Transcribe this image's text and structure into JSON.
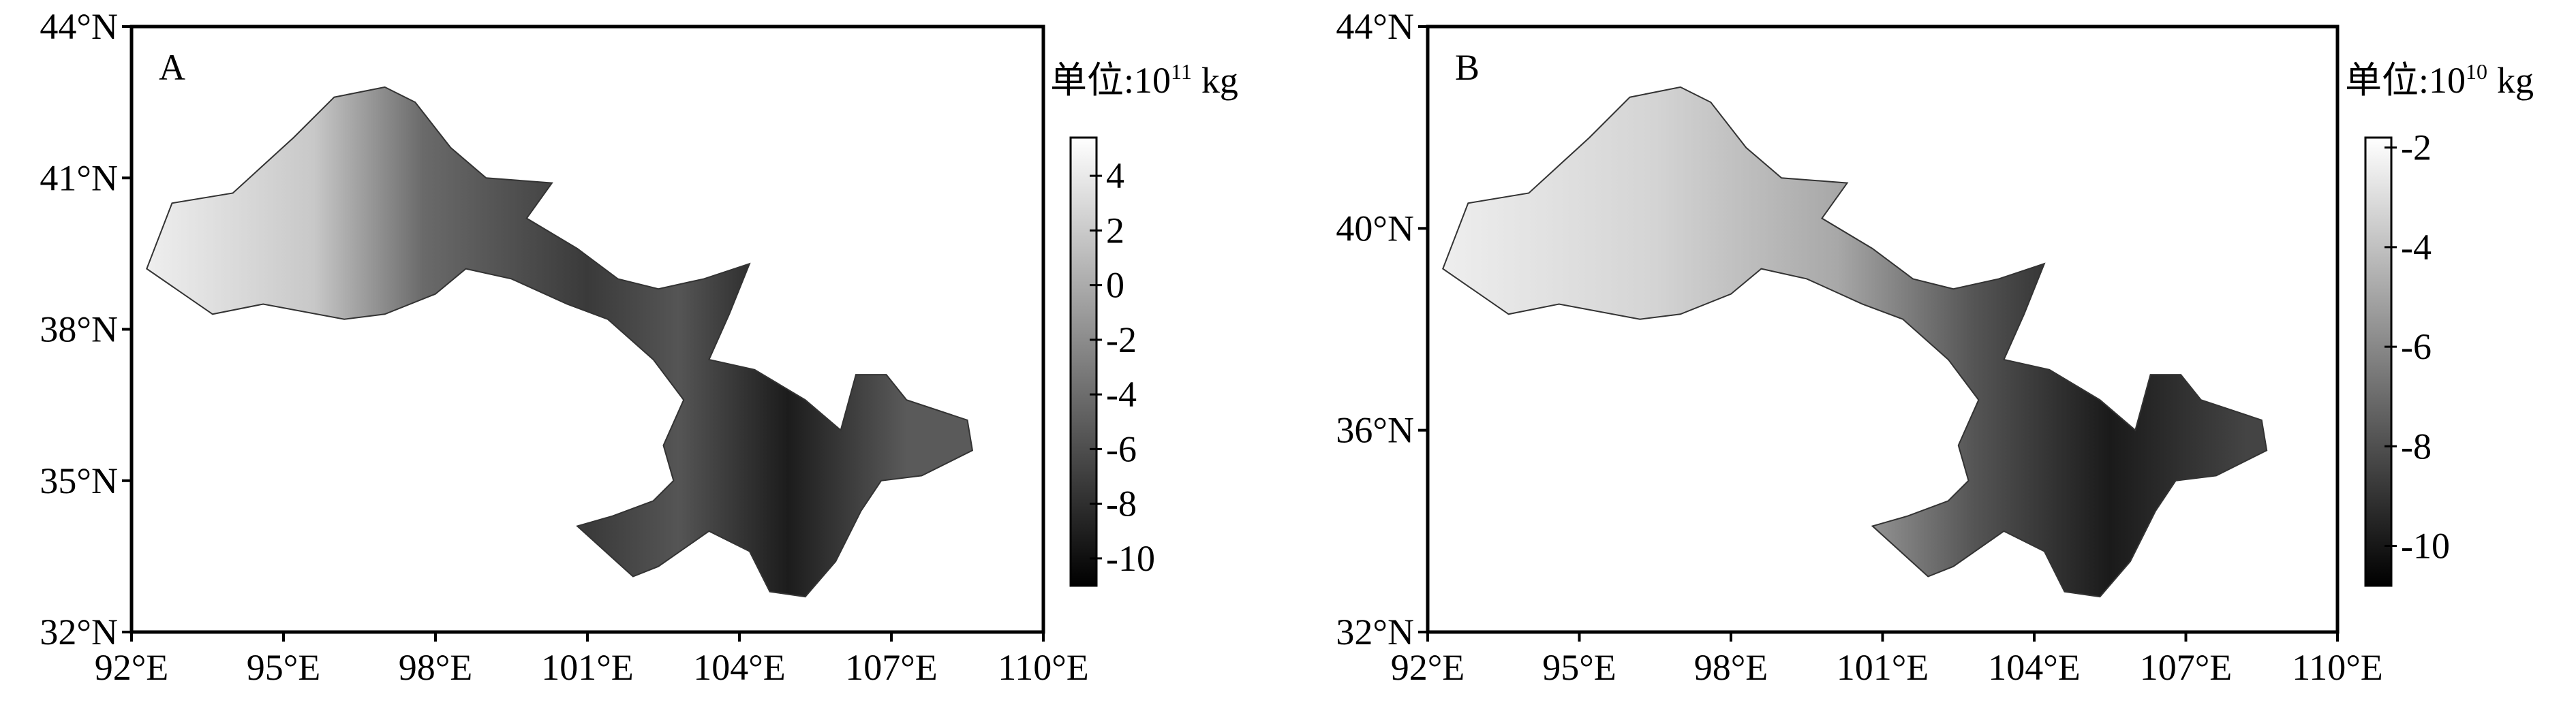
{
  "panels": [
    {
      "label": "A",
      "lon_lim": [
        92,
        110
      ],
      "lat_lim": [
        32,
        44
      ],
      "lat_ticks": [
        {
          "value": 44,
          "label": "44°N"
        },
        {
          "value": 41,
          "label": "41°N"
        },
        {
          "value": 38,
          "label": "38°N"
        },
        {
          "value": 35,
          "label": "35°N"
        },
        {
          "value": 32,
          "label": "32°N"
        }
      ],
      "lon_ticks": [
        {
          "value": 92,
          "label": "92°E"
        },
        {
          "value": 95,
          "label": "95°E"
        },
        {
          "value": 98,
          "label": "98°E"
        },
        {
          "value": 101,
          "label": "101°E"
        },
        {
          "value": 104,
          "label": "104°E"
        },
        {
          "value": 107,
          "label": "107°E"
        },
        {
          "value": 110,
          "label": "110°E"
        }
      ],
      "colorbar": {
        "unit": {
          "text": "单位:10",
          "exponent": "11",
          "suffix": "kg"
        },
        "lim": [
          -11,
          5.4
        ],
        "ticks": [
          4,
          2,
          0,
          -2,
          -4,
          -6,
          -8,
          -10
        ]
      }
    },
    {
      "label": "B",
      "lon_lim": [
        92,
        110
      ],
      "lat_lim": [
        32,
        44
      ],
      "lat_ticks": [
        {
          "value": 44,
          "label": "44°N"
        },
        {
          "value": 40,
          "label": "40°N"
        },
        {
          "value": 36,
          "label": "36°N"
        },
        {
          "value": 32,
          "label": "32°N"
        }
      ],
      "lon_ticks": [
        {
          "value": 92,
          "label": "92°E"
        },
        {
          "value": 95,
          "label": "95°E"
        },
        {
          "value": 98,
          "label": "98°E"
        },
        {
          "value": 101,
          "label": "101°E"
        },
        {
          "value": 104,
          "label": "104°E"
        },
        {
          "value": 107,
          "label": "107°E"
        },
        {
          "value": 110,
          "label": "110°E"
        }
      ],
      "colorbar": {
        "unit": {
          "text": "单位:10",
          "exponent": "10",
          "suffix": "kg"
        },
        "lim": [
          -10.8,
          -1.8
        ],
        "ticks": [
          -2,
          -4,
          -6,
          -8,
          -10
        ]
      }
    }
  ]
}
